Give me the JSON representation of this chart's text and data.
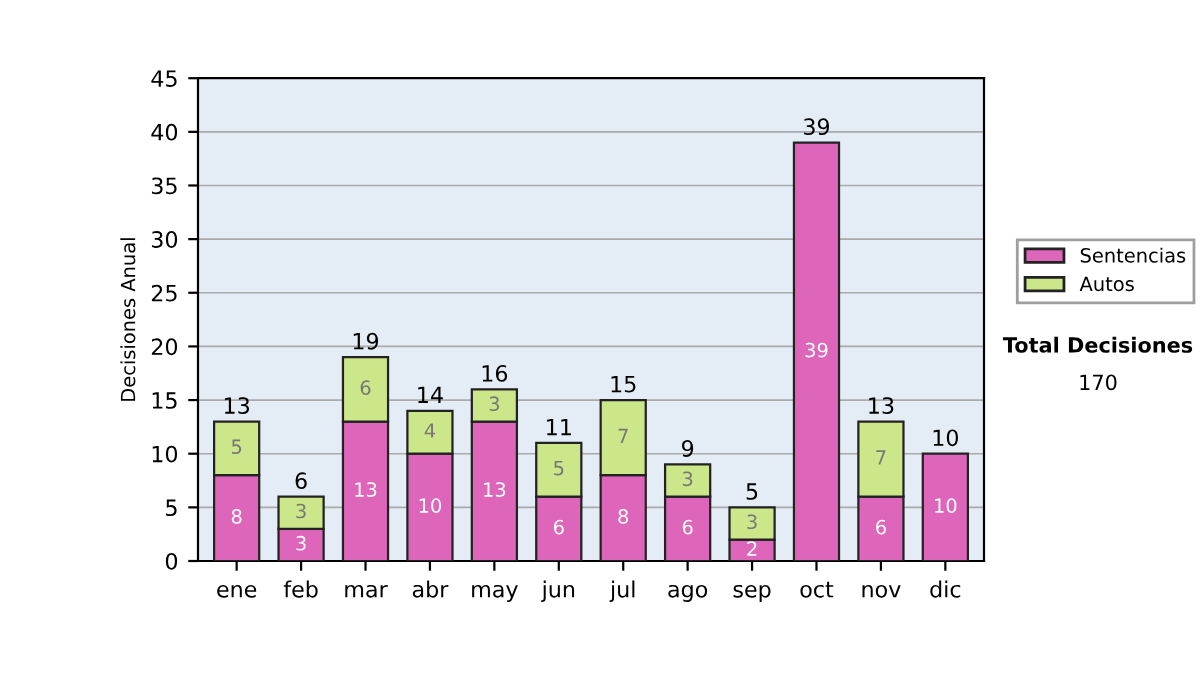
{
  "chart_data": {
    "type": "bar",
    "stacked": true,
    "ylabel": "Decisiones Anual",
    "categories": [
      "ene",
      "feb",
      "mar",
      "abr",
      "may",
      "jun",
      "jul",
      "ago",
      "sep",
      "oct",
      "nov",
      "dic"
    ],
    "series": [
      {
        "name": "Sentencias",
        "color": "#dd66bb",
        "values": [
          8,
          3,
          13,
          10,
          13,
          6,
          8,
          6,
          2,
          39,
          6,
          10
        ],
        "value_labels": [
          "8",
          "3",
          "13",
          "10",
          "13",
          "6",
          "8",
          "6",
          "2",
          "39",
          "6",
          "10"
        ]
      },
      {
        "name": "Autos",
        "color": "#cce68a",
        "values": [
          5,
          3,
          6,
          4,
          3,
          5,
          7,
          3,
          3,
          0,
          7,
          0
        ],
        "value_labels": [
          "5",
          "3",
          "6",
          "4",
          "3",
          "5",
          "7",
          "3",
          "3",
          null,
          "7",
          null
        ]
      }
    ],
    "totals": [
      "13",
      "6",
      "19",
      "14",
      "16",
      "11",
      "15",
      "9",
      "5",
      "39",
      "13",
      "10"
    ],
    "ylim": [
      0,
      45
    ],
    "yticks": [
      0,
      5,
      10,
      15,
      20,
      25,
      30,
      35,
      40,
      45
    ],
    "grid": "y",
    "legend": "right",
    "annotations": [
      "Total Decisiones",
      "170"
    ]
  }
}
